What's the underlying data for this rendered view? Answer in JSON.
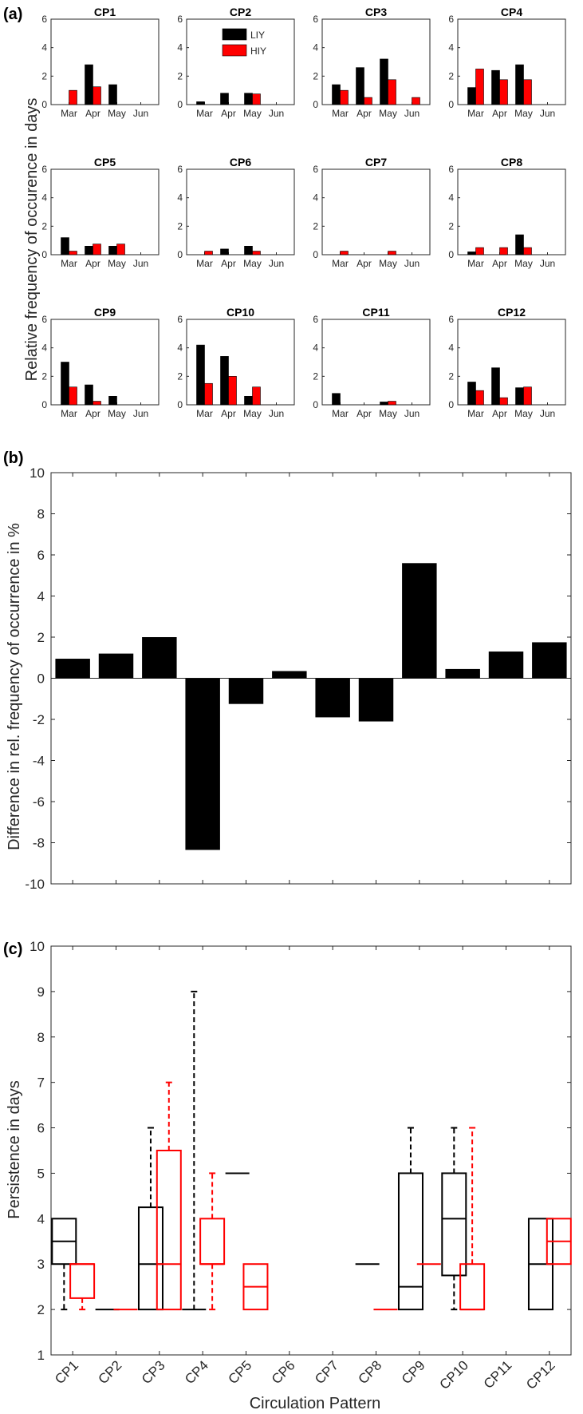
{
  "chart_data": [
    {
      "panel": "(a)",
      "type": "bar",
      "ylabel": "Relative frequency of occurence in days",
      "ylim": [
        0,
        6
      ],
      "yticks": [
        0,
        2,
        4,
        6
      ],
      "categories": [
        "Mar",
        "Apr",
        "May",
        "Jun"
      ],
      "legend": {
        "placement": "top-right",
        "entries": [
          "LIY",
          "HIY"
        ]
      },
      "series_colors": {
        "LIY": "#000000",
        "HIY": "#ff0000"
      },
      "subplots": [
        {
          "title": "CP1",
          "LIY": [
            0.0,
            2.8,
            1.4,
            0.0
          ],
          "HIY": [
            1.0,
            1.25,
            0.0,
            0.0
          ]
        },
        {
          "title": "CP2",
          "LIY": [
            0.2,
            0.8,
            0.8,
            0.0
          ],
          "HIY": [
            0.0,
            0.0,
            0.75,
            0.0
          ]
        },
        {
          "title": "CP3",
          "LIY": [
            1.4,
            2.6,
            3.2,
            0.0
          ],
          "HIY": [
            1.0,
            0.5,
            1.75,
            0.5
          ]
        },
        {
          "title": "CP4",
          "LIY": [
            1.2,
            2.4,
            2.8,
            0.0
          ],
          "HIY": [
            2.5,
            1.75,
            1.75,
            0.0
          ]
        },
        {
          "title": "CP5",
          "LIY": [
            1.2,
            0.6,
            0.6,
            0.0
          ],
          "HIY": [
            0.25,
            0.75,
            0.75,
            0.0
          ]
        },
        {
          "title": "CP6",
          "LIY": [
            0.0,
            0.4,
            0.6,
            0.0
          ],
          "HIY": [
            0.25,
            0.0,
            0.25,
            0.0
          ]
        },
        {
          "title": "CP7",
          "LIY": [
            0.0,
            0.0,
            0.0,
            0.0
          ],
          "HIY": [
            0.25,
            0.0,
            0.25,
            0.0
          ]
        },
        {
          "title": "CP8",
          "LIY": [
            0.2,
            0.0,
            1.4,
            0.0
          ],
          "HIY": [
            0.5,
            0.5,
            0.5,
            0.0
          ]
        },
        {
          "title": "CP9",
          "LIY": [
            3.0,
            1.4,
            0.6,
            0.0
          ],
          "HIY": [
            1.25,
            0.25,
            0.0,
            0.0
          ]
        },
        {
          "title": "CP10",
          "LIY": [
            4.2,
            3.4,
            0.6,
            0.0
          ],
          "HIY": [
            1.5,
            2.0,
            1.25,
            0.0
          ]
        },
        {
          "title": "CP11",
          "LIY": [
            0.8,
            0.0,
            0.2,
            0.0
          ],
          "HIY": [
            0.0,
            0.0,
            0.25,
            0.0
          ]
        },
        {
          "title": "CP12",
          "LIY": [
            1.6,
            2.6,
            1.2,
            0.0
          ],
          "HIY": [
            1.0,
            0.5,
            1.25,
            0.0
          ]
        }
      ]
    },
    {
      "panel": "(b)",
      "type": "bar",
      "ylabel": "Difference in rel. frequency of occurrence in %",
      "ylim": [
        -10,
        10
      ],
      "yticks": [
        -10,
        -8,
        -6,
        -4,
        -2,
        0,
        2,
        4,
        6,
        8,
        10
      ],
      "categories": [
        "CP1",
        "CP2",
        "CP3",
        "CP4",
        "CP5",
        "CP6",
        "CP7",
        "CP8",
        "CP9",
        "CP10",
        "CP11",
        "CP12"
      ],
      "values": [
        0.95,
        1.2,
        2.0,
        -8.35,
        -1.25,
        0.35,
        -1.9,
        -2.1,
        5.6,
        0.45,
        1.3,
        1.75
      ],
      "color": "#000000"
    },
    {
      "panel": "(c)",
      "type": "boxplot",
      "ylabel": "Persistence in days",
      "xlabel": "Circulation Pattern",
      "ylim": [
        1,
        10
      ],
      "yticks": [
        1,
        2,
        3,
        4,
        5,
        6,
        7,
        8,
        9,
        10
      ],
      "categories": [
        "CP1",
        "CP2",
        "CP3",
        "CP4",
        "CP5",
        "CP6",
        "CP7",
        "CP8",
        "CP9",
        "CP10",
        "CP11",
        "CP12"
      ],
      "series_colors": {
        "LIY": "#000000",
        "HIY": "#ff0000"
      },
      "boxes": [
        {
          "cp": "CP1",
          "series": "LIY",
          "min": 2,
          "q1": 3,
          "median": 3.5,
          "q3": 4,
          "max": 4
        },
        {
          "cp": "CP1",
          "series": "HIY",
          "min": 2,
          "q1": 2.25,
          "median": 3,
          "q3": 3,
          "max": 3
        },
        {
          "cp": "CP2",
          "series": "LIY",
          "min": 2,
          "q1": 2,
          "median": 2,
          "q3": 2,
          "max": 2
        },
        {
          "cp": "CP2",
          "series": "HIY",
          "min": 2,
          "q1": 2,
          "median": 2,
          "q3": 2,
          "max": 2
        },
        {
          "cp": "CP3",
          "series": "LIY",
          "min": 2,
          "q1": 2,
          "median": 3,
          "q3": 4.25,
          "max": 6
        },
        {
          "cp": "CP3",
          "series": "HIY",
          "min": 2,
          "q1": 2,
          "median": 3,
          "q3": 5.5,
          "max": 7
        },
        {
          "cp": "CP4",
          "series": "LIY",
          "min": 2,
          "q1": 2,
          "median": 2,
          "q3": 2,
          "max": 9
        },
        {
          "cp": "CP4",
          "series": "HIY",
          "min": 2,
          "q1": 3,
          "median": 3,
          "q3": 4,
          "max": 5
        },
        {
          "cp": "CP5",
          "series": "LIY",
          "min": 5,
          "q1": 5,
          "median": 5,
          "q3": 5,
          "max": 5
        },
        {
          "cp": "CP5",
          "series": "HIY",
          "min": 2,
          "q1": 2,
          "median": 2.5,
          "q3": 3,
          "max": 3
        },
        {
          "cp": "CP8",
          "series": "LIY",
          "min": 3,
          "q1": 3,
          "median": 3,
          "q3": 3,
          "max": 3
        },
        {
          "cp": "CP8",
          "series": "HIY",
          "min": 2,
          "q1": 2,
          "median": 2,
          "q3": 2,
          "max": 2
        },
        {
          "cp": "CP9",
          "series": "LIY",
          "min": 2,
          "q1": 2,
          "median": 2.5,
          "q3": 5,
          "max": 6
        },
        {
          "cp": "CP9",
          "series": "HIY",
          "min": 3,
          "q1": 3,
          "median": 3,
          "q3": 3,
          "max": 3
        },
        {
          "cp": "CP10",
          "series": "LIY",
          "min": 2,
          "q1": 2.75,
          "median": 4,
          "q3": 5,
          "max": 6
        },
        {
          "cp": "CP10",
          "series": "HIY",
          "min": 2,
          "q1": 2,
          "median": 2,
          "q3": 3,
          "max": 6
        },
        {
          "cp": "CP12",
          "series": "LIY",
          "min": 2,
          "q1": 2,
          "median": 3,
          "q3": 4,
          "max": 4
        },
        {
          "cp": "CP12",
          "series": "HIY",
          "min": 3,
          "q1": 3,
          "median": 3.5,
          "q3": 4,
          "max": 4
        }
      ]
    }
  ]
}
